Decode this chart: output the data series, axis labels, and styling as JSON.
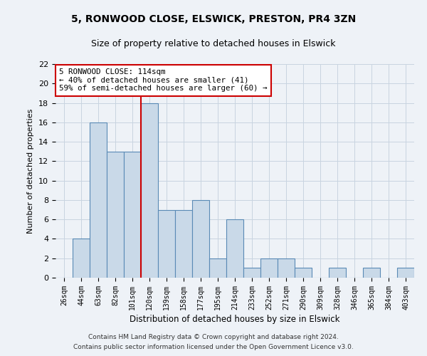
{
  "title1": "5, RONWOOD CLOSE, ELSWICK, PRESTON, PR4 3ZN",
  "title2": "Size of property relative to detached houses in Elswick",
  "xlabel": "Distribution of detached houses by size in Elswick",
  "ylabel": "Number of detached properties",
  "categories": [
    "26sqm",
    "44sqm",
    "63sqm",
    "82sqm",
    "101sqm",
    "120sqm",
    "139sqm",
    "158sqm",
    "177sqm",
    "195sqm",
    "214sqm",
    "233sqm",
    "252sqm",
    "271sqm",
    "290sqm",
    "309sqm",
    "328sqm",
    "346sqm",
    "365sqm",
    "384sqm",
    "403sqm"
  ],
  "values": [
    0,
    4,
    16,
    13,
    13,
    18,
    7,
    7,
    8,
    2,
    6,
    1,
    2,
    2,
    1,
    0,
    1,
    0,
    1,
    0,
    1
  ],
  "bar_color": "#c9d9e8",
  "bar_edge_color": "#5a8ab5",
  "grid_color": "#c8d4e0",
  "vline_x": 4.5,
  "vline_color": "#cc0000",
  "annotation_line1": "5 RONWOOD CLOSE: 114sqm",
  "annotation_line2": "← 40% of detached houses are smaller (41)",
  "annotation_line3": "59% of semi-detached houses are larger (60) →",
  "annotation_box_color": "#ffffff",
  "annotation_box_edge": "#cc0000",
  "ylim": [
    0,
    22
  ],
  "yticks": [
    0,
    2,
    4,
    6,
    8,
    10,
    12,
    14,
    16,
    18,
    20,
    22
  ],
  "footer1": "Contains HM Land Registry data © Crown copyright and database right 2024.",
  "footer2": "Contains public sector information licensed under the Open Government Licence v3.0.",
  "background_color": "#eef2f7",
  "title1_fontsize": 10,
  "title2_fontsize": 9
}
